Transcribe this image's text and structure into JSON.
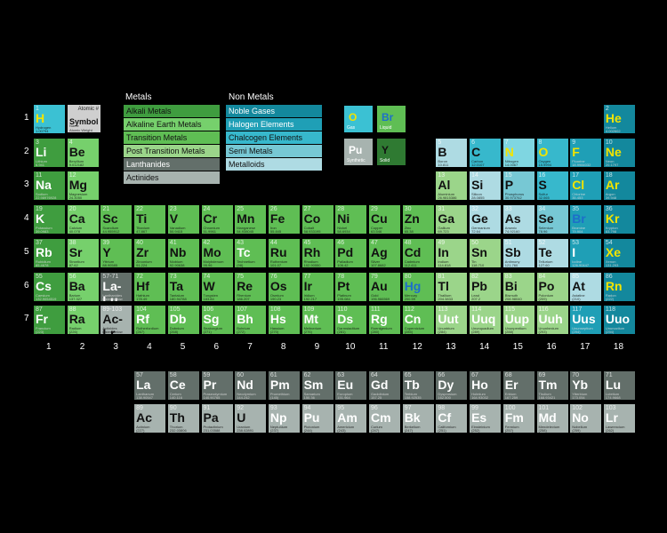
{
  "colors": {
    "alkali": "#3f9d3f",
    "alkaline": "#76d06c",
    "transition": "#5fbe54",
    "post": "#9bd58a",
    "lanthanide": "#636f6a",
    "actinide": "#a7b3af",
    "noble": "#13889d",
    "halogen": "#1f9fb6",
    "chalcogen": "#37b8cc",
    "semi": "#77c8d4",
    "metalloid": "#aedbe3",
    "hydrogen": "#3bc1d3",
    "unknown": "#7fd6e1"
  },
  "legend": {
    "metals_heading": "Metals",
    "nonmetals_heading": "Non Metals",
    "metals": [
      {
        "label": "Alkali Metals",
        "cat": "alkali"
      },
      {
        "label": "Alkaline Earth Metals",
        "cat": "alkaline"
      },
      {
        "label": "Transition Metals",
        "cat": "transition"
      },
      {
        "label": "Post Transition Metals",
        "cat": "post"
      },
      {
        "label": "Lanthanides",
        "cat": "lanthanide"
      },
      {
        "label": "Actinides",
        "cat": "actinide"
      }
    ],
    "nonmetals": [
      {
        "label": "Noble Gases",
        "cat": "noble"
      },
      {
        "label": "Halogen Elements",
        "cat": "halogen"
      },
      {
        "label": "Chalcogen Elements",
        "cat": "chalcogen"
      },
      {
        "label": "Semi Metals",
        "cat": "semi"
      },
      {
        "label": "Metalloids",
        "cat": "metalloid"
      }
    ]
  },
  "key_box": {
    "number": "Atomic #",
    "symbol": "Symbol",
    "name": "Name",
    "mass": "Atomic Weight"
  },
  "state_key": [
    {
      "sym": "O",
      "cap": "Gas",
      "color": "#3bc1d3",
      "symcolor": "#f2e400"
    },
    {
      "sym": "Br",
      "cap": "Liquid",
      "color": "#5fbe54",
      "symcolor": "#1d6fc9"
    },
    {
      "sym": "Pu",
      "cap": "Synthetic",
      "color": "#a7b3af",
      "symcolor": "#ffffff"
    },
    {
      "sym": "Y",
      "cap": "Solid",
      "color": "#2f7a32",
      "symcolor": "#111111"
    }
  ],
  "period_labels": [
    "1",
    "2",
    "3",
    "4",
    "5",
    "6",
    "7"
  ],
  "group_labels": [
    "1",
    "2",
    "3",
    "4",
    "5",
    "6",
    "7",
    "8",
    "9",
    "10",
    "11",
    "12",
    "13",
    "14",
    "15",
    "16",
    "17",
    "18"
  ],
  "elements": [
    {
      "n": "1",
      "s": "H",
      "name": "Hydrogen",
      "m": "1.00794",
      "g": 1,
      "p": 1,
      "c": "hydrogen",
      "st": "gas"
    },
    {
      "n": "2",
      "s": "He",
      "name": "Helium",
      "m": "4.002602",
      "g": 18,
      "p": 1,
      "c": "noble",
      "st": "gas"
    },
    {
      "n": "3",
      "s": "Li",
      "name": "Lithium",
      "m": "6.941",
      "g": 1,
      "p": 2,
      "c": "alkali"
    },
    {
      "n": "4",
      "s": "Be",
      "name": "Beryllium",
      "m": "9.012182",
      "g": 2,
      "p": 2,
      "c": "alkaline"
    },
    {
      "n": "5",
      "s": "B",
      "name": "Boron",
      "m": "10.811",
      "g": 13,
      "p": 2,
      "c": "metalloid"
    },
    {
      "n": "6",
      "s": "C",
      "name": "Carbon",
      "m": "12.0107",
      "g": 14,
      "p": 2,
      "c": "chalcogen"
    },
    {
      "n": "7",
      "s": "N",
      "name": "Nitrogen",
      "m": "14.0067",
      "g": 15,
      "p": 2,
      "c": "unknown",
      "st": "gas"
    },
    {
      "n": "8",
      "s": "O",
      "name": "Oxygen",
      "m": "15.9994",
      "g": 16,
      "p": 2,
      "c": "chalcogen",
      "st": "gas"
    },
    {
      "n": "9",
      "s": "F",
      "name": "Fluorine",
      "m": "18.9984032",
      "g": 17,
      "p": 2,
      "c": "halogen",
      "st": "gas"
    },
    {
      "n": "10",
      "s": "Ne",
      "name": "Neon",
      "m": "20.1797",
      "g": 18,
      "p": 2,
      "c": "noble",
      "st": "gas"
    },
    {
      "n": "11",
      "s": "Na",
      "name": "Sodium",
      "m": "22.98976928",
      "g": 1,
      "p": 3,
      "c": "alkali"
    },
    {
      "n": "12",
      "s": "Mg",
      "name": "Magnesium",
      "m": "24.3050",
      "g": 2,
      "p": 3,
      "c": "alkaline"
    },
    {
      "n": "13",
      "s": "Al",
      "name": "Aluminium",
      "m": "26.9815386",
      "g": 13,
      "p": 3,
      "c": "post"
    },
    {
      "n": "14",
      "s": "Si",
      "name": "Silicon",
      "m": "28.0855",
      "g": 14,
      "p": 3,
      "c": "metalloid"
    },
    {
      "n": "15",
      "s": "P",
      "name": "Phosphorus",
      "m": "30.973762",
      "g": 15,
      "p": 3,
      "c": "semi"
    },
    {
      "n": "16",
      "s": "S",
      "name": "Sulfur",
      "m": "32.065",
      "g": 16,
      "p": 3,
      "c": "chalcogen"
    },
    {
      "n": "17",
      "s": "Cl",
      "name": "Chlorine",
      "m": "35.453",
      "g": 17,
      "p": 3,
      "c": "halogen",
      "st": "gas"
    },
    {
      "n": "18",
      "s": "Ar",
      "name": "Argon",
      "m": "39.948",
      "g": 18,
      "p": 3,
      "c": "noble",
      "st": "gas"
    },
    {
      "n": "19",
      "s": "K",
      "name": "Potassium",
      "m": "39.0983",
      "g": 1,
      "p": 4,
      "c": "alkali"
    },
    {
      "n": "20",
      "s": "Ca",
      "name": "Calcium",
      "m": "40.078",
      "g": 2,
      "p": 4,
      "c": "alkaline"
    },
    {
      "n": "21",
      "s": "Sc",
      "name": "Scandium",
      "m": "44.955912",
      "g": 3,
      "p": 4,
      "c": "transition"
    },
    {
      "n": "22",
      "s": "Ti",
      "name": "Titanium",
      "m": "47.867",
      "g": 4,
      "p": 4,
      "c": "transition"
    },
    {
      "n": "23",
      "s": "V",
      "name": "Vanadium",
      "m": "50.9415",
      "g": 5,
      "p": 4,
      "c": "transition"
    },
    {
      "n": "24",
      "s": "Cr",
      "name": "Chromium",
      "m": "51.9961",
      "g": 6,
      "p": 4,
      "c": "transition"
    },
    {
      "n": "25",
      "s": "Mn",
      "name": "Manganese",
      "m": "54.938045",
      "g": 7,
      "p": 4,
      "c": "transition"
    },
    {
      "n": "26",
      "s": "Fe",
      "name": "Iron",
      "m": "55.845",
      "g": 8,
      "p": 4,
      "c": "transition"
    },
    {
      "n": "27",
      "s": "Co",
      "name": "Cobalt",
      "m": "58.933195",
      "g": 9,
      "p": 4,
      "c": "transition"
    },
    {
      "n": "28",
      "s": "Ni",
      "name": "Nickel",
      "m": "58.6934",
      "g": 10,
      "p": 4,
      "c": "transition"
    },
    {
      "n": "29",
      "s": "Cu",
      "name": "Copper",
      "m": "63.546",
      "g": 11,
      "p": 4,
      "c": "transition"
    },
    {
      "n": "30",
      "s": "Zn",
      "name": "Zinc",
      "m": "65.38",
      "g": 12,
      "p": 4,
      "c": "transition"
    },
    {
      "n": "31",
      "s": "Ga",
      "name": "Gallium",
      "m": "69.723",
      "g": 13,
      "p": 4,
      "c": "post"
    },
    {
      "n": "32",
      "s": "Ge",
      "name": "Germanium",
      "m": "72.64",
      "g": 14,
      "p": 4,
      "c": "metalloid"
    },
    {
      "n": "33",
      "s": "As",
      "name": "Arsenic",
      "m": "74.92160",
      "g": 15,
      "p": 4,
      "c": "metalloid"
    },
    {
      "n": "34",
      "s": "Se",
      "name": "Selenium",
      "m": "78.96",
      "g": 16,
      "p": 4,
      "c": "semi"
    },
    {
      "n": "35",
      "s": "Br",
      "name": "Bromine",
      "m": "79.904",
      "g": 17,
      "p": 4,
      "c": "halogen",
      "st": "liquid"
    },
    {
      "n": "36",
      "s": "Kr",
      "name": "Krypton",
      "m": "83.798",
      "g": 18,
      "p": 4,
      "c": "noble",
      "st": "gas"
    },
    {
      "n": "37",
      "s": "Rb",
      "name": "Rubidium",
      "m": "85.4678",
      "g": 1,
      "p": 5,
      "c": "alkali"
    },
    {
      "n": "38",
      "s": "Sr",
      "name": "Strontium",
      "m": "87.62",
      "g": 2,
      "p": 5,
      "c": "alkaline"
    },
    {
      "n": "39",
      "s": "Y",
      "name": "Yttrium",
      "m": "88.90585",
      "g": 3,
      "p": 5,
      "c": "transition"
    },
    {
      "n": "40",
      "s": "Zr",
      "name": "Zirconium",
      "m": "91.224",
      "g": 4,
      "p": 5,
      "c": "transition"
    },
    {
      "n": "41",
      "s": "Nb",
      "name": "Niobium",
      "m": "92.90638",
      "g": 5,
      "p": 5,
      "c": "transition"
    },
    {
      "n": "42",
      "s": "Mo",
      "name": "Molybdenum",
      "m": "95.96",
      "g": 6,
      "p": 5,
      "c": "transition"
    },
    {
      "n": "43",
      "s": "Tc",
      "name": "Technetium",
      "m": "(98)",
      "g": 7,
      "p": 5,
      "c": "transition",
      "st": "synthetic"
    },
    {
      "n": "44",
      "s": "Ru",
      "name": "Ruthenium",
      "m": "101.07",
      "g": 8,
      "p": 5,
      "c": "transition"
    },
    {
      "n": "45",
      "s": "Rh",
      "name": "Rhodium",
      "m": "102.90550",
      "g": 9,
      "p": 5,
      "c": "transition"
    },
    {
      "n": "46",
      "s": "Pd",
      "name": "Palladium",
      "m": "106.42",
      "g": 10,
      "p": 5,
      "c": "transition"
    },
    {
      "n": "47",
      "s": "Ag",
      "name": "Silver",
      "m": "107.8682",
      "g": 11,
      "p": 5,
      "c": "transition"
    },
    {
      "n": "48",
      "s": "Cd",
      "name": "Cadmium",
      "m": "112.411",
      "g": 12,
      "p": 5,
      "c": "transition"
    },
    {
      "n": "49",
      "s": "In",
      "name": "Indium",
      "m": "114.818",
      "g": 13,
      "p": 5,
      "c": "post"
    },
    {
      "n": "50",
      "s": "Sn",
      "name": "Tin",
      "m": "118.710",
      "g": 14,
      "p": 5,
      "c": "post"
    },
    {
      "n": "51",
      "s": "Sb",
      "name": "Antimony",
      "m": "121.760",
      "g": 15,
      "p": 5,
      "c": "metalloid"
    },
    {
      "n": "52",
      "s": "Te",
      "name": "Tellurium",
      "m": "127.60",
      "g": 16,
      "p": 5,
      "c": "metalloid"
    },
    {
      "n": "53",
      "s": "I",
      "name": "Iodine",
      "m": "126.90447",
      "g": 17,
      "p": 5,
      "c": "halogen"
    },
    {
      "n": "54",
      "s": "Xe",
      "name": "Xenon",
      "m": "131.293",
      "g": 18,
      "p": 5,
      "c": "noble",
      "st": "gas"
    },
    {
      "n": "55",
      "s": "Cs",
      "name": "Caesium",
      "m": "132.9054519",
      "g": 1,
      "p": 6,
      "c": "alkali"
    },
    {
      "n": "56",
      "s": "Ba",
      "name": "Barium",
      "m": "137.327",
      "g": 2,
      "p": 6,
      "c": "alkaline"
    },
    {
      "n": "57-71",
      "s": "La-Lu",
      "name": "Lanthanides",
      "m": "Listed below",
      "g": 3,
      "p": 6,
      "c": "lanthanide"
    },
    {
      "n": "72",
      "s": "Hf",
      "name": "Hafnium",
      "m": "178.49",
      "g": 4,
      "p": 6,
      "c": "transition"
    },
    {
      "n": "73",
      "s": "Ta",
      "name": "Tantalum",
      "m": "180.94788",
      "g": 5,
      "p": 6,
      "c": "transition"
    },
    {
      "n": "74",
      "s": "W",
      "name": "Tungsten",
      "m": "183.84",
      "g": 6,
      "p": 6,
      "c": "transition"
    },
    {
      "n": "75",
      "s": "Re",
      "name": "Rhenium",
      "m": "186.207",
      "g": 7,
      "p": 6,
      "c": "transition"
    },
    {
      "n": "76",
      "s": "Os",
      "name": "Osmium",
      "m": "190.23",
      "g": 8,
      "p": 6,
      "c": "transition"
    },
    {
      "n": "77",
      "s": "Ir",
      "name": "Iridium",
      "m": "192.217",
      "g": 9,
      "p": 6,
      "c": "transition"
    },
    {
      "n": "78",
      "s": "Pt",
      "name": "Platinum",
      "m": "195.084",
      "g": 10,
      "p": 6,
      "c": "transition"
    },
    {
      "n": "79",
      "s": "Au",
      "name": "Gold",
      "m": "196.966569",
      "g": 11,
      "p": 6,
      "c": "transition"
    },
    {
      "n": "80",
      "s": "Hg",
      "name": "Mercury",
      "m": "200.59",
      "g": 12,
      "p": 6,
      "c": "transition",
      "st": "liquid"
    },
    {
      "n": "81",
      "s": "Tl",
      "name": "Thallium",
      "m": "204.3833",
      "g": 13,
      "p": 6,
      "c": "post"
    },
    {
      "n": "82",
      "s": "Pb",
      "name": "Lead",
      "m": "207.2",
      "g": 14,
      "p": 6,
      "c": "post"
    },
    {
      "n": "83",
      "s": "Bi",
      "name": "Bismuth",
      "m": "208.98040",
      "g": 15,
      "p": 6,
      "c": "post"
    },
    {
      "n": "84",
      "s": "Po",
      "name": "Polonium",
      "m": "(209)",
      "g": 16,
      "p": 6,
      "c": "post"
    },
    {
      "n": "85",
      "s": "At",
      "name": "Astatine",
      "m": "(210)",
      "g": 17,
      "p": 6,
      "c": "metalloid"
    },
    {
      "n": "86",
      "s": "Rn",
      "name": "Radon",
      "m": "(222)",
      "g": 18,
      "p": 6,
      "c": "noble",
      "st": "gas"
    },
    {
      "n": "87",
      "s": "Fr",
      "name": "Francium",
      "m": "(223)",
      "g": 1,
      "p": 7,
      "c": "alkali"
    },
    {
      "n": "88",
      "s": "Ra",
      "name": "Radium",
      "m": "(226)",
      "g": 2,
      "p": 7,
      "c": "alkaline"
    },
    {
      "n": "89-103",
      "s": "Ac-Lr",
      "name": "Actinides",
      "m": "Listed below",
      "g": 3,
      "p": 7,
      "c": "actinide"
    },
    {
      "n": "104",
      "s": "Rf",
      "name": "Rutherfordium",
      "m": "(267)",
      "g": 4,
      "p": 7,
      "c": "transition",
      "st": "synthetic"
    },
    {
      "n": "105",
      "s": "Db",
      "name": "Dubnium",
      "m": "(268)",
      "g": 5,
      "p": 7,
      "c": "transition",
      "st": "synthetic"
    },
    {
      "n": "106",
      "s": "Sg",
      "name": "Seaborgium",
      "m": "(271)",
      "g": 6,
      "p": 7,
      "c": "transition",
      "st": "synthetic"
    },
    {
      "n": "107",
      "s": "Bh",
      "name": "Bohrium",
      "m": "(272)",
      "g": 7,
      "p": 7,
      "c": "transition",
      "st": "synthetic"
    },
    {
      "n": "108",
      "s": "Hs",
      "name": "Hassium",
      "m": "(270)",
      "g": 8,
      "p": 7,
      "c": "transition",
      "st": "synthetic"
    },
    {
      "n": "109",
      "s": "Mt",
      "name": "Meitnerium",
      "m": "(276)",
      "g": 9,
      "p": 7,
      "c": "transition",
      "st": "synthetic"
    },
    {
      "n": "110",
      "s": "Ds",
      "name": "Darmstadtium",
      "m": "(281)",
      "g": 10,
      "p": 7,
      "c": "transition",
      "st": "synthetic"
    },
    {
      "n": "111",
      "s": "Rg",
      "name": "Roentgenium",
      "m": "(280)",
      "g": 11,
      "p": 7,
      "c": "transition",
      "st": "synthetic"
    },
    {
      "n": "112",
      "s": "Cn",
      "name": "Copernicium",
      "m": "(285)",
      "g": 12,
      "p": 7,
      "c": "transition",
      "st": "synthetic"
    },
    {
      "n": "113",
      "s": "Uut",
      "name": "Ununtrium",
      "m": "(284)",
      "g": 13,
      "p": 7,
      "c": "post",
      "st": "synthetic"
    },
    {
      "n": "114",
      "s": "Uuq",
      "name": "Ununquadium",
      "m": "(289)",
      "g": 14,
      "p": 7,
      "c": "post",
      "st": "synthetic"
    },
    {
      "n": "115",
      "s": "Uup",
      "name": "Ununpentium",
      "m": "(288)",
      "g": 15,
      "p": 7,
      "c": "post",
      "st": "synthetic"
    },
    {
      "n": "116",
      "s": "Uuh",
      "name": "Ununhexium",
      "m": "(293)",
      "g": 16,
      "p": 7,
      "c": "post",
      "st": "synthetic"
    },
    {
      "n": "117",
      "s": "Uus",
      "name": "Ununseptium",
      "m": "(294)",
      "g": 17,
      "p": 7,
      "c": "halogen",
      "st": "synthetic"
    },
    {
      "n": "118",
      "s": "Uuo",
      "name": "Ununoctium",
      "m": "(294)",
      "g": 18,
      "p": 7,
      "c": "noble",
      "st": "synthetic"
    }
  ],
  "lanthanides": [
    {
      "n": "57",
      "s": "La",
      "name": "Lanthanum",
      "m": "138.90547"
    },
    {
      "n": "58",
      "s": "Ce",
      "name": "Cerium",
      "m": "140.116"
    },
    {
      "n": "59",
      "s": "Pr",
      "name": "Praseodymium",
      "m": "140.90765"
    },
    {
      "n": "60",
      "s": "Nd",
      "name": "Neodymium",
      "m": "144.242"
    },
    {
      "n": "61",
      "s": "Pm",
      "name": "Promethium",
      "m": "(145)",
      "st": "synthetic"
    },
    {
      "n": "62",
      "s": "Sm",
      "name": "Samarium",
      "m": "150.36"
    },
    {
      "n": "63",
      "s": "Eu",
      "name": "Europium",
      "m": "151.964"
    },
    {
      "n": "64",
      "s": "Gd",
      "name": "Gadolinium",
      "m": "157.25"
    },
    {
      "n": "65",
      "s": "Tb",
      "name": "Terbium",
      "m": "158.92535"
    },
    {
      "n": "66",
      "s": "Dy",
      "name": "Dysprosium",
      "m": "162.500"
    },
    {
      "n": "67",
      "s": "Ho",
      "name": "Holmium",
      "m": "164.93032"
    },
    {
      "n": "68",
      "s": "Er",
      "name": "Erbium",
      "m": "167.259"
    },
    {
      "n": "69",
      "s": "Tm",
      "name": "Thulium",
      "m": "168.93421"
    },
    {
      "n": "70",
      "s": "Yb",
      "name": "Ytterbium",
      "m": "173.054"
    },
    {
      "n": "71",
      "s": "Lu",
      "name": "Lutetium",
      "m": "174.9668"
    }
  ],
  "actinides": [
    {
      "n": "89",
      "s": "Ac",
      "name": "Actinium",
      "m": "(227)"
    },
    {
      "n": "90",
      "s": "Th",
      "name": "Thorium",
      "m": "232.03806"
    },
    {
      "n": "91",
      "s": "Pa",
      "name": "Protactinium",
      "m": "231.03588"
    },
    {
      "n": "92",
      "s": "U",
      "name": "Uranium",
      "m": "238.02891"
    },
    {
      "n": "93",
      "s": "Np",
      "name": "Neptunium",
      "m": "(237)",
      "st": "synthetic"
    },
    {
      "n": "94",
      "s": "Pu",
      "name": "Plutonium",
      "m": "(244)",
      "st": "synthetic"
    },
    {
      "n": "95",
      "s": "Am",
      "name": "Americium",
      "m": "(243)",
      "st": "synthetic"
    },
    {
      "n": "96",
      "s": "Cm",
      "name": "Curium",
      "m": "(247)",
      "st": "synthetic"
    },
    {
      "n": "97",
      "s": "Bk",
      "name": "Berkelium",
      "m": "(247)",
      "st": "synthetic"
    },
    {
      "n": "98",
      "s": "Cf",
      "name": "Californium",
      "m": "(251)",
      "st": "synthetic"
    },
    {
      "n": "99",
      "s": "Es",
      "name": "Einsteinium",
      "m": "(252)",
      "st": "synthetic"
    },
    {
      "n": "100",
      "s": "Fm",
      "name": "Fermium",
      "m": "(257)",
      "st": "synthetic"
    },
    {
      "n": "101",
      "s": "Md",
      "name": "Mendelevium",
      "m": "(258)",
      "st": "synthetic"
    },
    {
      "n": "102",
      "s": "No",
      "name": "Nobelium",
      "m": "(259)",
      "st": "synthetic"
    },
    {
      "n": "103",
      "s": "Lr",
      "name": "Lawrencium",
      "m": "(262)",
      "st": "synthetic"
    }
  ]
}
